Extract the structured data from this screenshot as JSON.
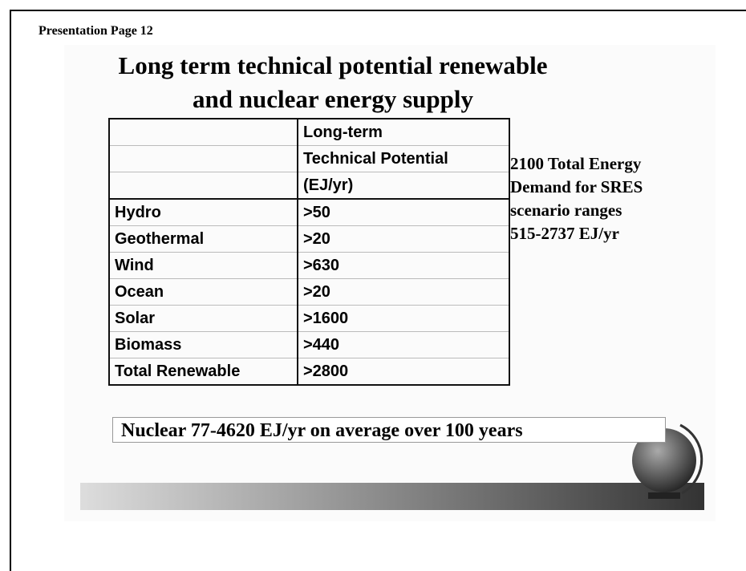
{
  "header": {
    "label": "Presentation Page 12"
  },
  "slide": {
    "title": [
      "Long term technical potential renewable",
      "and nuclear energy supply"
    ],
    "table": {
      "column_header": [
        "Long-term",
        "Technical Potential",
        "(EJ/yr)"
      ],
      "rows": [
        [
          "Hydro",
          ">50"
        ],
        [
          "Geothermal",
          ">20"
        ],
        [
          "Wind",
          ">630"
        ],
        [
          "Ocean",
          ">20"
        ],
        [
          "Solar",
          ">1600"
        ],
        [
          "Biomass",
          ">440"
        ],
        [
          "Total Renewable",
          ">2800"
        ]
      ]
    },
    "note": [
      "2100 Total Energy",
      "Demand for SRES",
      "scenario ranges",
      "515-2737 EJ/yr"
    ],
    "footer": "Nuclear 77-4620 EJ/yr on average over 100 years"
  }
}
